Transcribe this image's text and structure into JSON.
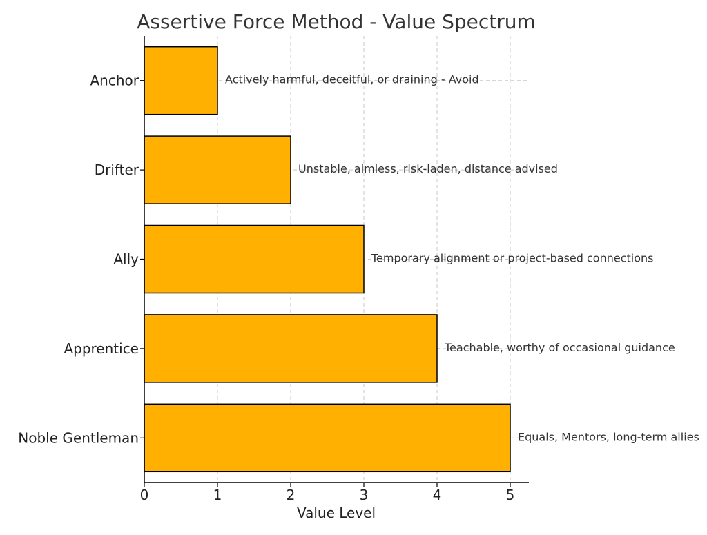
{
  "chart_data": {
    "type": "bar",
    "orientation": "horizontal",
    "title": "Assertive Force Method - Value Spectrum",
    "xlabel": "Value Level",
    "ylabel": "",
    "categories": [
      "Anchor",
      "Drifter",
      "Ally",
      "Apprentice",
      "Noble Gentleman"
    ],
    "values": [
      1,
      2,
      3,
      4,
      5
    ],
    "annotations": [
      "Actively harmful, deceitful, or draining - Avoid",
      "Unstable, aimless, risk-laden, distance advised",
      "Temporary alignment or project-based connections",
      "Teachable, worthy of occasional guidance",
      "Equals, Mentors, long-term allies"
    ],
    "xlim": [
      0,
      5.25
    ],
    "xticks": [
      0,
      1,
      2,
      3,
      4,
      5
    ],
    "grid": true,
    "legend": "none",
    "colors": {
      "bar": "#FFB000",
      "edge": "#000000"
    }
  }
}
